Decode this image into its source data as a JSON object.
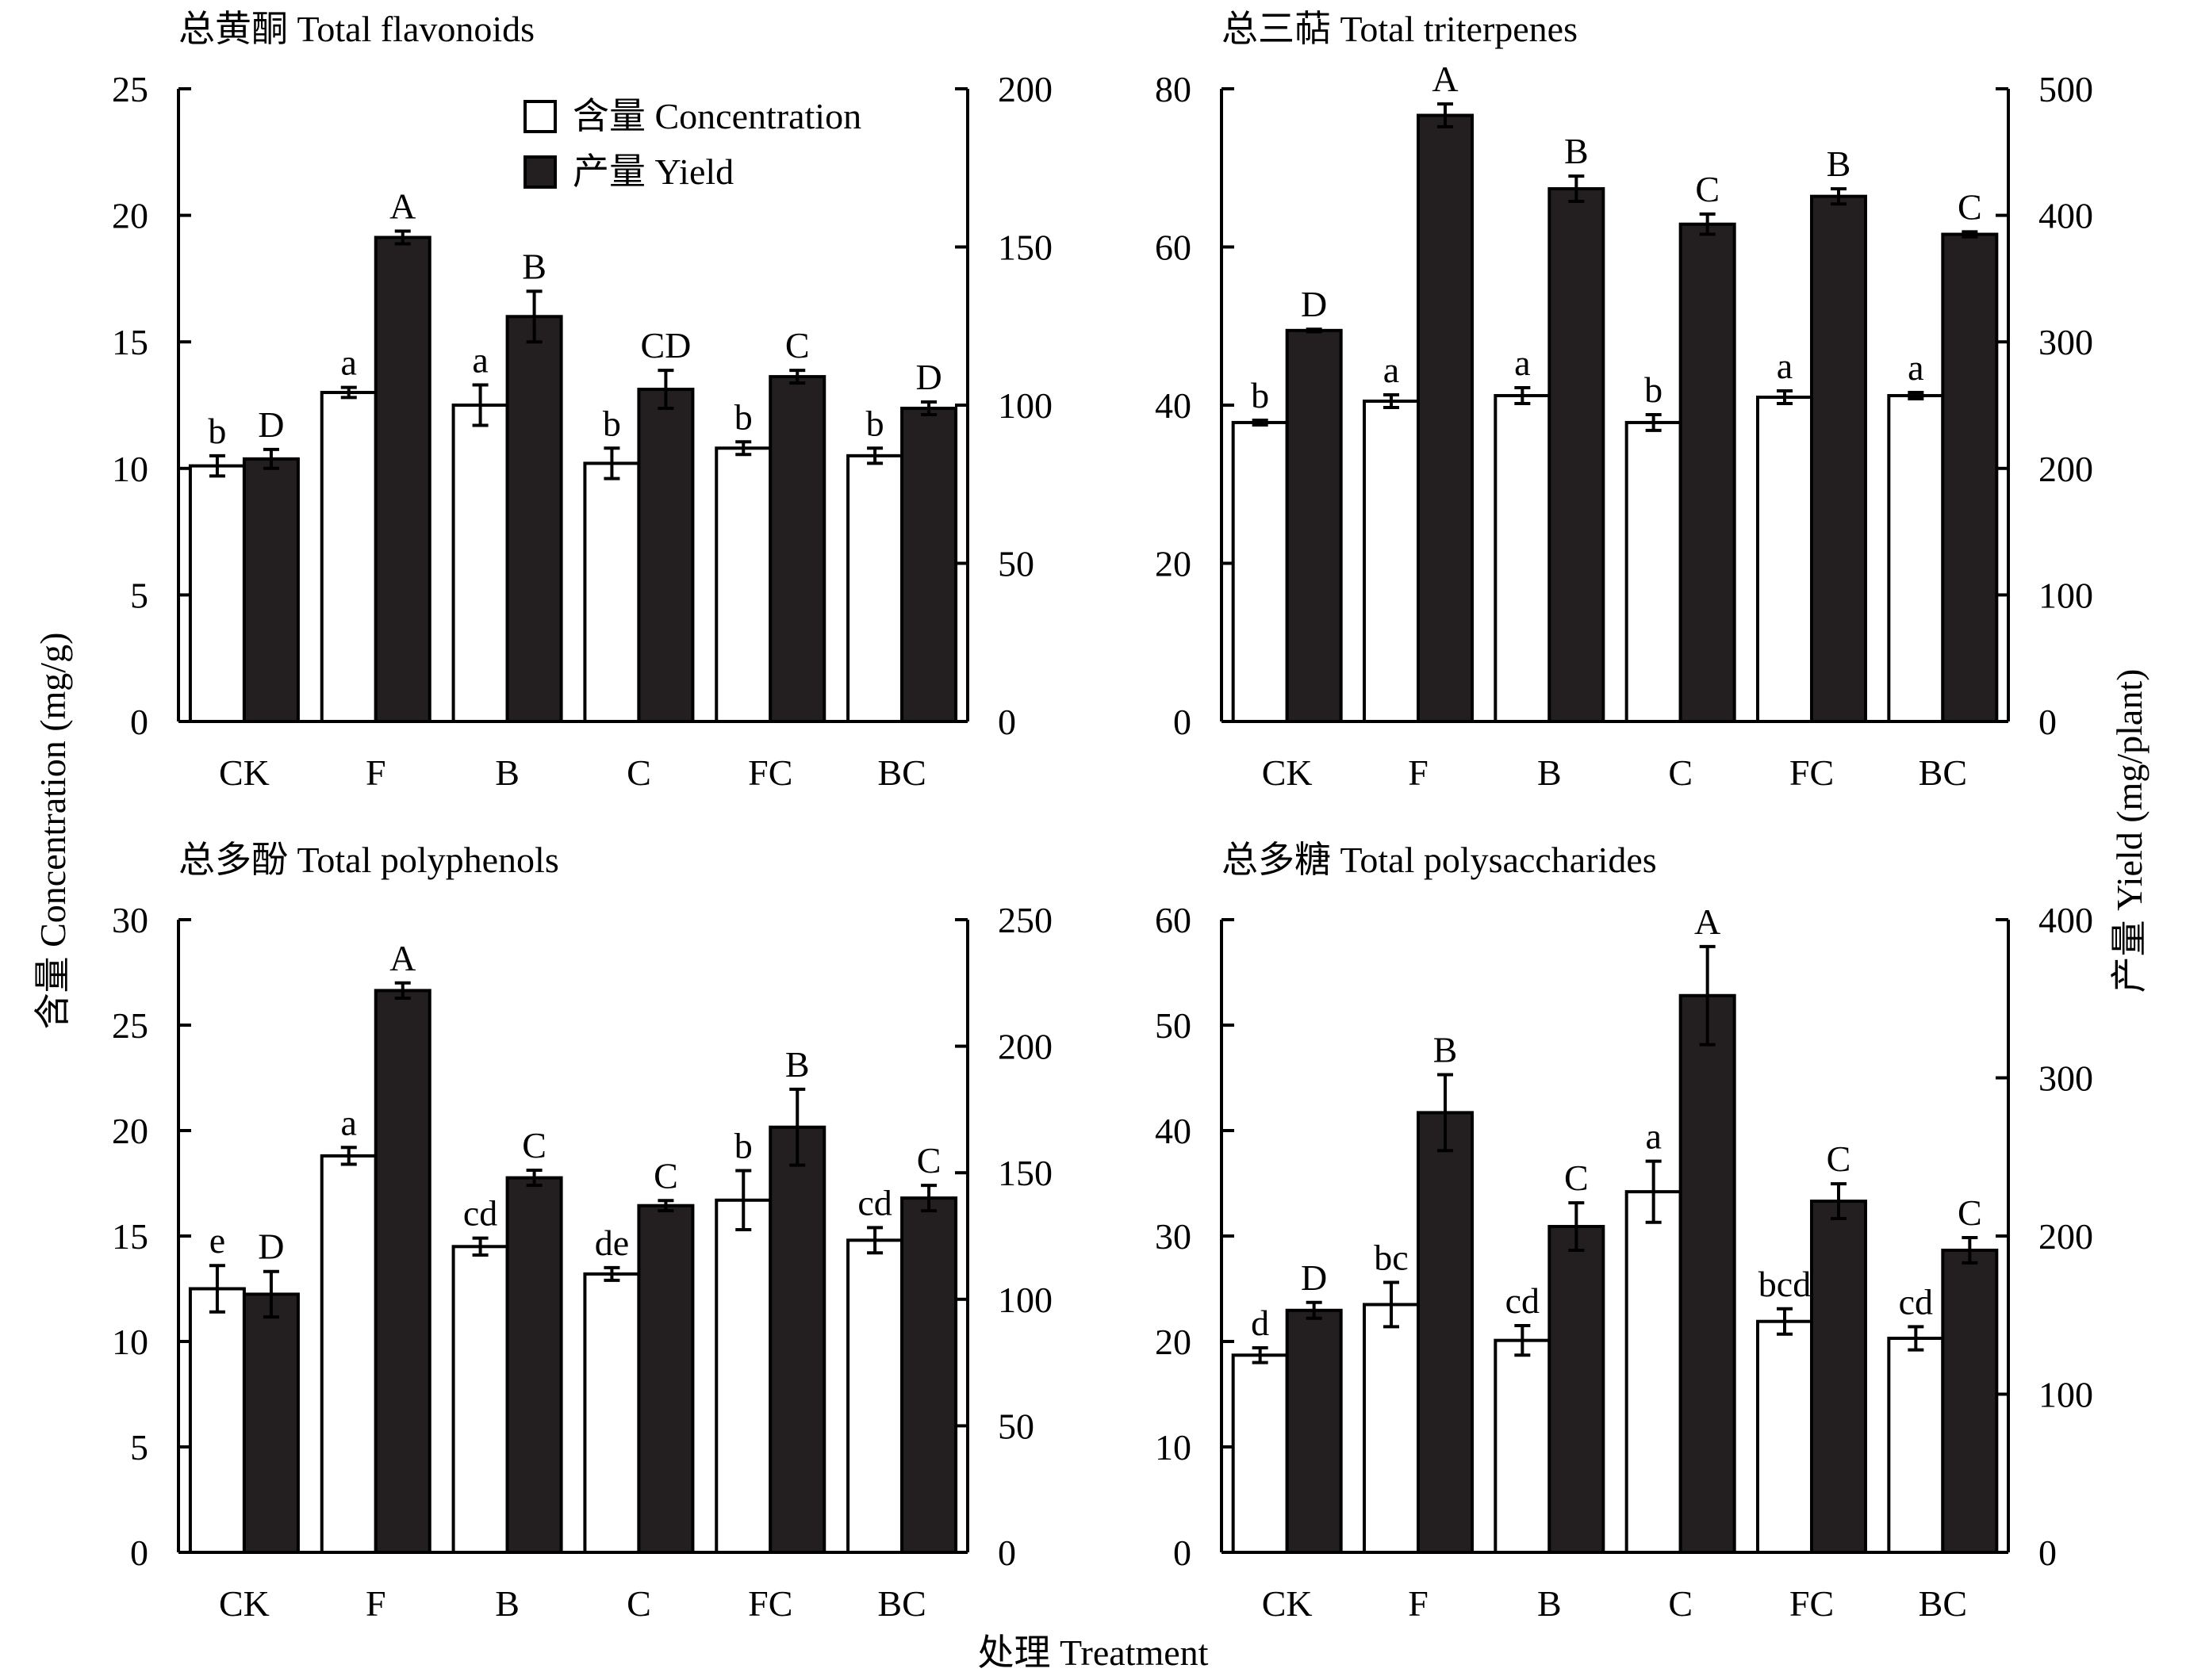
{
  "figure": {
    "y_left_label": "含量 Concentration (mg/g)",
    "y_right_label": "产量 Yield (mg/plant)",
    "x_label": "处理 Treatment",
    "legend": [
      {
        "label": "含量 Concentration",
        "color": "#ffffff"
      },
      {
        "label": "产量 Yield",
        "color": "#231f20"
      }
    ]
  },
  "chart_data": [
    {
      "type": "bar",
      "title": "总黄酮 Total flavonoids",
      "categories": [
        "CK",
        "F",
        "B",
        "C",
        "FC",
        "BC"
      ],
      "ylim_left": [
        0,
        25
      ],
      "yticks_left": [
        0,
        5,
        10,
        15,
        20,
        25
      ],
      "ylim_right": [
        0,
        200
      ],
      "yticks_right": [
        0,
        50,
        100,
        150,
        200
      ],
      "series": [
        {
          "name": "含量 Concentration",
          "axis": "left",
          "color": "#ffffff",
          "values": [
            10.1,
            13.0,
            12.5,
            10.2,
            10.8,
            10.5
          ],
          "errors": [
            0.4,
            0.2,
            0.8,
            0.6,
            0.25,
            0.3
          ],
          "labels": [
            "b",
            "a",
            "a",
            "b",
            "b",
            "b"
          ]
        },
        {
          "name": "产量 Yield",
          "axis": "right",
          "color": "#231f20",
          "values": [
            83,
            153,
            128,
            105,
            109,
            99
          ],
          "errors": [
            3,
            2,
            8,
            6,
            2,
            2
          ],
          "labels": [
            "D",
            "A",
            "B",
            "CD",
            "C",
            "D"
          ]
        }
      ]
    },
    {
      "type": "bar",
      "title": "总三萜 Total triterpenes",
      "categories": [
        "CK",
        "F",
        "B",
        "C",
        "FC",
        "BC"
      ],
      "ylim_left": [
        0,
        80
      ],
      "yticks_left": [
        0,
        20,
        40,
        60,
        80
      ],
      "ylim_right": [
        0,
        500
      ],
      "yticks_right": [
        0,
        100,
        200,
        300,
        400,
        500
      ],
      "series": [
        {
          "name": "含量 Concentration",
          "axis": "left",
          "color": "#ffffff",
          "values": [
            37.8,
            40.5,
            41.2,
            37.8,
            41.0,
            41.2
          ],
          "errors": [
            0.3,
            0.8,
            1.0,
            1.0,
            0.8,
            0.4
          ],
          "labels": [
            "b",
            "a",
            "a",
            "b",
            "a",
            "a"
          ]
        },
        {
          "name": "产量 Yield",
          "axis": "right",
          "color": "#231f20",
          "values": [
            309,
            479,
            421,
            393,
            415,
            385
          ],
          "errors": [
            1,
            9,
            10,
            8,
            6,
            2
          ],
          "labels": [
            "D",
            "A",
            "B",
            "C",
            "B",
            "C"
          ]
        }
      ]
    },
    {
      "type": "bar",
      "title": "总多酚 Total polyphenols",
      "categories": [
        "CK",
        "F",
        "B",
        "C",
        "FC",
        "BC"
      ],
      "ylim_left": [
        0,
        30
      ],
      "yticks_left": [
        0,
        5,
        10,
        15,
        20,
        25,
        30
      ],
      "ylim_right": [
        0,
        250
      ],
      "yticks_right": [
        0,
        50,
        100,
        150,
        200,
        250
      ],
      "series": [
        {
          "name": "含量 Concentration",
          "axis": "left",
          "color": "#ffffff",
          "values": [
            12.5,
            18.8,
            14.5,
            13.2,
            16.7,
            14.8
          ],
          "errors": [
            1.1,
            0.4,
            0.4,
            0.3,
            1.4,
            0.6
          ],
          "labels": [
            "e",
            "a",
            "cd",
            "de",
            "b",
            "cd"
          ]
        },
        {
          "name": "产量 Yield",
          "axis": "right",
          "color": "#231f20",
          "values": [
            102,
            222,
            148,
            137,
            168,
            140
          ],
          "errors": [
            9,
            3,
            3,
            2,
            15,
            5
          ],
          "labels": [
            "D",
            "A",
            "C",
            "C",
            "B",
            "C"
          ]
        }
      ]
    },
    {
      "type": "bar",
      "title": "总多糖 Total polysaccharides",
      "categories": [
        "CK",
        "F",
        "B",
        "C",
        "FC",
        "BC"
      ],
      "ylim_left": [
        0,
        60
      ],
      "yticks_left": [
        0,
        10,
        20,
        30,
        40,
        50,
        60
      ],
      "ylim_right": [
        0,
        400
      ],
      "yticks_right": [
        0,
        100,
        200,
        300,
        400
      ],
      "series": [
        {
          "name": "含量 Concentration",
          "axis": "left",
          "color": "#ffffff",
          "values": [
            18.7,
            23.5,
            20.1,
            34.2,
            21.9,
            20.3
          ],
          "errors": [
            0.7,
            2.1,
            1.4,
            2.9,
            1.2,
            1.1
          ],
          "labels": [
            "d",
            "bc",
            "cd",
            "a",
            "bcd",
            "cd"
          ]
        },
        {
          "name": "产量 Yield",
          "axis": "right",
          "color": "#231f20",
          "values": [
            153,
            278,
            206,
            352,
            222,
            191
          ],
          "errors": [
            5,
            24,
            15,
            31,
            11,
            8
          ],
          "labels": [
            "D",
            "B",
            "C",
            "A",
            "C",
            "C"
          ]
        }
      ]
    }
  ]
}
